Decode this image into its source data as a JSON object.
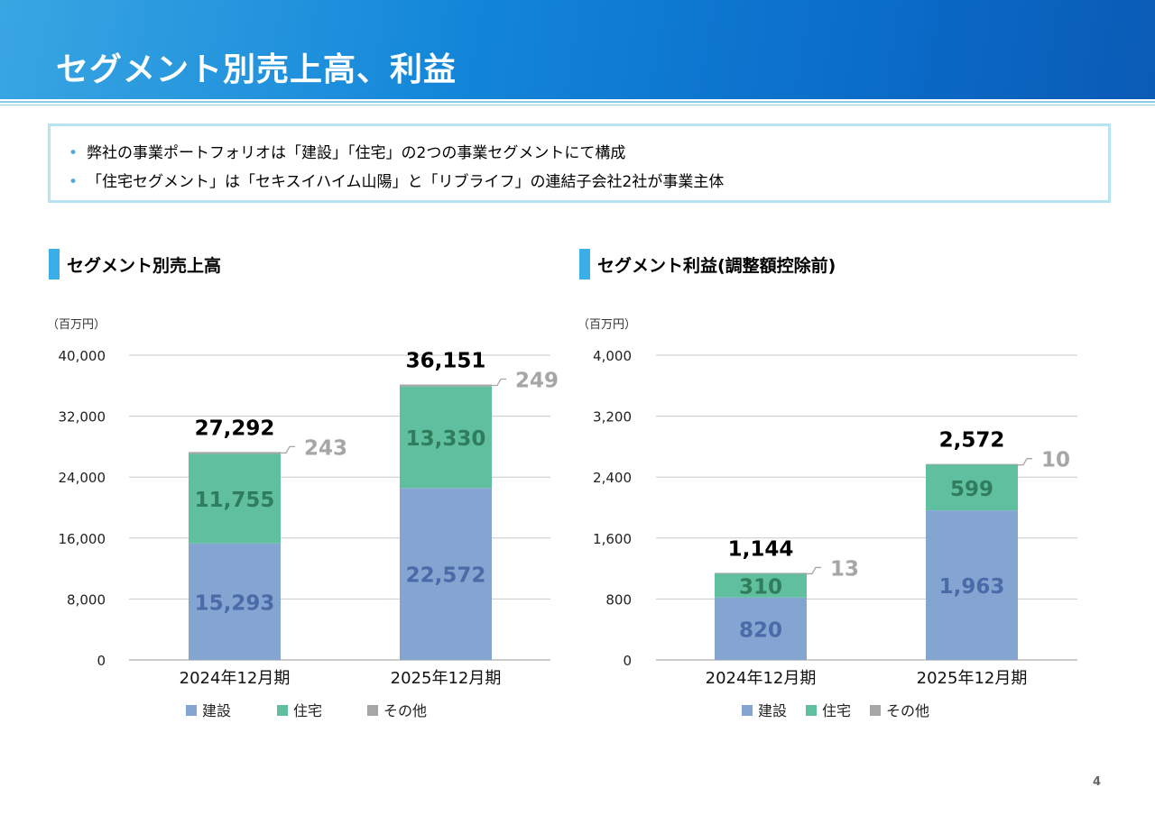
{
  "title": "セグメント別売上高、利益",
  "bullets": [
    "弊社の事業ポートフォリオは「建設」「住宅」の2つの事業セグメントにて構成",
    "「住宅セグメント」は「セキスイハイム山陽」と「リブライフ」の連結子会社2社が事業主体"
  ],
  "page_number": "4",
  "colors": {
    "construction": "#84a4d2",
    "housing": "#5fbf9f",
    "other": "#a6a6a6",
    "construction_label": "#4b6aa8",
    "housing_label": "#2f7d5d",
    "other_label": "#a6a6a6"
  },
  "chart_data": [
    {
      "type": "bar",
      "stacked": true,
      "title": "セグメント別売上高",
      "unit": "（百万円）",
      "categories": [
        "2024年12月期",
        "2025年12月期"
      ],
      "series": [
        {
          "name": "建設",
          "values": [
            15293,
            22572
          ]
        },
        {
          "name": "住宅",
          "values": [
            11755,
            13330
          ]
        },
        {
          "name": "その他",
          "values": [
            243,
            249
          ]
        }
      ],
      "totals": [
        27292,
        36151
      ],
      "ylim": [
        0,
        40000
      ],
      "yticks": [
        0,
        8000,
        16000,
        24000,
        32000,
        40000
      ],
      "legend": "bottom"
    },
    {
      "type": "bar",
      "stacked": true,
      "title": "セグメント利益(調整額控除前)",
      "unit": "（百万円）",
      "categories": [
        "2024年12月期",
        "2025年12月期"
      ],
      "series": [
        {
          "name": "建設",
          "values": [
            820,
            1963
          ]
        },
        {
          "name": "住宅",
          "values": [
            310,
            599
          ]
        },
        {
          "name": "その他",
          "values": [
            13,
            10
          ]
        }
      ],
      "totals": [
        1144,
        2572
      ],
      "ylim": [
        0,
        4000
      ],
      "yticks": [
        0,
        800,
        1600,
        2400,
        3200,
        4000
      ],
      "legend": "bottom"
    }
  ]
}
